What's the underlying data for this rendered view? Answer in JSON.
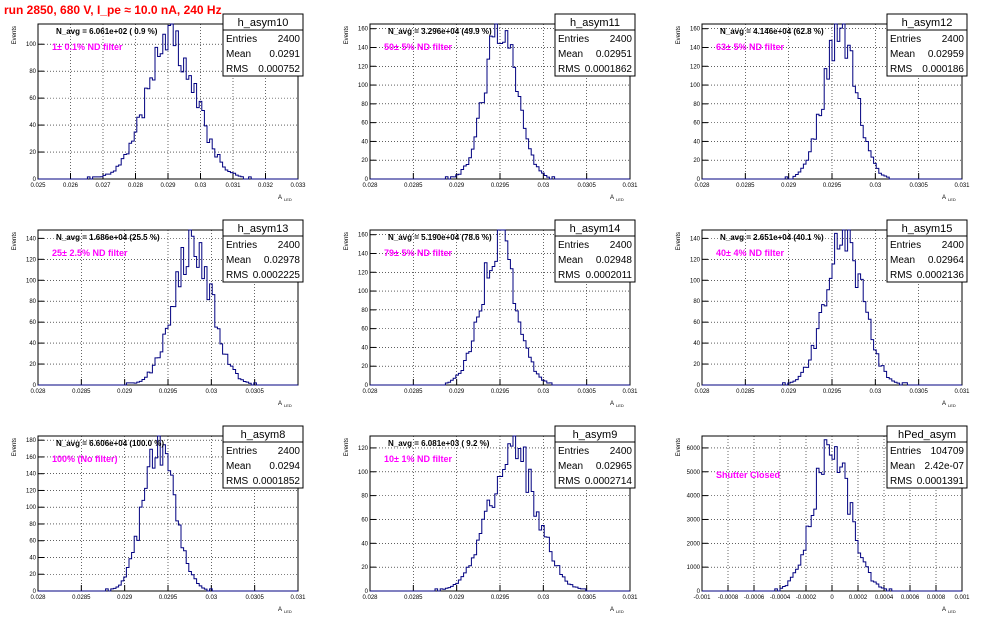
{
  "header": {
    "title": "run 2850,   680 V, I_pe ≈ 10.0 nA, 240 Hz"
  },
  "colors": {
    "title": "#ff0000",
    "annotation": "#ff00ff",
    "histogram": "#000080",
    "grid": "#000000"
  },
  "axis_labels": {
    "y": "Events",
    "x": "A",
    "x_sub": "LED"
  },
  "stats_labels": {
    "entries": "Entries",
    "mean": "Mean",
    "rms": "RMS"
  },
  "chart_data": [
    {
      "type": "histogram",
      "name": "h_asym10",
      "navg": "N_avg = 6.061e+02 ( 0.9 %)",
      "annotation": "1± 0.1% ND filter",
      "entries": "2400",
      "mean": "0.0291",
      "rms": "0.000752",
      "xlim": [
        0.025,
        0.033
      ],
      "xticks": [
        0.025,
        0.026,
        0.027,
        0.028,
        0.029,
        0.03,
        0.031,
        0.032,
        0.033
      ],
      "xtick_labels": [
        "0.025",
        "0.026",
        "0.027",
        "0.028",
        "0.029",
        "0.03",
        "0.031",
        "0.032",
        "0.033"
      ],
      "ylim": [
        0,
        115
      ],
      "yticks": [
        0,
        20,
        40,
        60,
        80,
        100
      ],
      "ytick_labels": [
        "0",
        "20",
        "40",
        "60",
        "80",
        "100"
      ],
      "shape": {
        "mean": 0.0291,
        "rms": 0.000752,
        "peak": 103,
        "bins": 100,
        "seed": 10
      }
    },
    {
      "type": "histogram",
      "name": "h_asym11",
      "navg": "N_avg = 3.296e+04 (49.9 %)",
      "annotation": "50± 5% ND filter",
      "entries": "2400",
      "mean": "0.02951",
      "rms": "0.0001862",
      "xlim": [
        0.028,
        0.031
      ],
      "xticks": [
        0.028,
        0.0285,
        0.029,
        0.0295,
        0.03,
        0.0305,
        0.031
      ],
      "xtick_labels": [
        "0.028",
        "0.0285",
        "0.029",
        "0.0295",
        "0.03",
        "0.0305",
        "0.031"
      ],
      "ylim": [
        0,
        165
      ],
      "yticks": [
        0,
        20,
        40,
        60,
        80,
        100,
        120,
        140,
        160
      ],
      "ytick_labels": [
        "0",
        "20",
        "40",
        "60",
        "80",
        "100",
        "120",
        "140",
        "160"
      ],
      "shape": {
        "mean": 0.02951,
        "rms": 0.0001862,
        "peak": 158,
        "bins": 100,
        "seed": 11
      }
    },
    {
      "type": "histogram",
      "name": "h_asym12",
      "navg": "N_avg = 4.146e+04 (62.8 %)",
      "annotation": "63± 5% ND filter",
      "entries": "2400",
      "mean": "0.02959",
      "rms": "0.000186",
      "xlim": [
        0.028,
        0.031
      ],
      "xticks": [
        0.028,
        0.0285,
        0.029,
        0.0295,
        0.03,
        0.0305,
        0.031
      ],
      "xtick_labels": [
        "0.028",
        "0.0285",
        "0.029",
        "0.0295",
        "0.03",
        "0.0305",
        "0.031"
      ],
      "ylim": [
        0,
        165
      ],
      "yticks": [
        0,
        20,
        40,
        60,
        80,
        100,
        120,
        140,
        160
      ],
      "ytick_labels": [
        "0",
        "20",
        "40",
        "60",
        "80",
        "100",
        "120",
        "140",
        "160"
      ],
      "shape": {
        "mean": 0.02959,
        "rms": 0.000186,
        "peak": 155,
        "bins": 100,
        "seed": 12
      }
    },
    {
      "type": "histogram",
      "name": "h_asym13",
      "navg": "N_avg = 1.686e+04 (25.5 %)",
      "annotation": "25± 2.5% ND filter",
      "entries": "2400",
      "mean": "0.02978",
      "rms": "0.0002225",
      "xlim": [
        0.028,
        0.031
      ],
      "xticks": [
        0.028,
        0.0285,
        0.029,
        0.0295,
        0.03,
        0.0305
      ],
      "xtick_labels": [
        "0.028",
        "0.0285",
        "0.029",
        "0.0295",
        "0.03",
        "0.0305"
      ],
      "ylim": [
        0,
        148
      ],
      "yticks": [
        0,
        20,
        40,
        60,
        80,
        100,
        120,
        140
      ],
      "ytick_labels": [
        "0",
        "20",
        "40",
        "60",
        "80",
        "100",
        "120",
        "140"
      ],
      "shape": {
        "mean": 0.02978,
        "rms": 0.0002225,
        "peak": 137,
        "bins": 100,
        "seed": 13
      }
    },
    {
      "type": "histogram",
      "name": "h_asym14",
      "navg": "N_avg = 5.190e+04 (78.6 %)",
      "annotation": "79± 5% ND filter",
      "entries": "2400",
      "mean": "0.02948",
      "rms": "0.0002011",
      "xlim": [
        0.028,
        0.031
      ],
      "xticks": [
        0.028,
        0.0285,
        0.029,
        0.0295,
        0.03,
        0.0305,
        0.031
      ],
      "xtick_labels": [
        "0.028",
        "0.0285",
        "0.029",
        "0.0295",
        "0.03",
        "0.0305",
        "0.031"
      ],
      "ylim": [
        0,
        165
      ],
      "yticks": [
        0,
        20,
        40,
        60,
        80,
        100,
        120,
        140,
        160
      ],
      "ytick_labels": [
        "0",
        "20",
        "40",
        "60",
        "80",
        "100",
        "120",
        "140",
        "160"
      ],
      "shape": {
        "mean": 0.02948,
        "rms": 0.0002011,
        "peak": 150,
        "bins": 100,
        "seed": 14
      }
    },
    {
      "type": "histogram",
      "name": "h_asym15",
      "navg": "N_avg = 2.651e+04 (40.1 %)",
      "annotation": "40± 4% ND filter",
      "entries": "2400",
      "mean": "0.02964",
      "rms": "0.0002136",
      "xlim": [
        0.028,
        0.031
      ],
      "xticks": [
        0.028,
        0.0285,
        0.029,
        0.0295,
        0.03,
        0.0305,
        0.031
      ],
      "xtick_labels": [
        "0.028",
        "0.0285",
        "0.029",
        "0.0295",
        "0.03",
        "0.0305",
        "0.031"
      ],
      "ylim": [
        0,
        148
      ],
      "yticks": [
        0,
        20,
        40,
        60,
        80,
        100,
        120,
        140
      ],
      "ytick_labels": [
        "0",
        "20",
        "40",
        "60",
        "80",
        "100",
        "120",
        "140"
      ],
      "shape": {
        "mean": 0.02964,
        "rms": 0.0002136,
        "peak": 140,
        "bins": 100,
        "seed": 15
      }
    },
    {
      "type": "histogram",
      "name": "h_asym8",
      "navg": "N_avg = 6.606e+04 (100.0 %)",
      "annotation": "100% (No filter)",
      "entries": "2400",
      "mean": "0.0294",
      "rms": "0.0001852",
      "xlim": [
        0.028,
        0.031
      ],
      "xticks": [
        0.028,
        0.0285,
        0.029,
        0.0295,
        0.03,
        0.0305,
        0.031
      ],
      "xtick_labels": [
        "0.028",
        "0.0285",
        "0.029",
        "0.0295",
        "0.03",
        "0.0305",
        "0.031"
      ],
      "ylim": [
        0,
        185
      ],
      "yticks": [
        0,
        20,
        40,
        60,
        80,
        100,
        120,
        140,
        160,
        180
      ],
      "ytick_labels": [
        "0",
        "20",
        "40",
        "60",
        "80",
        "100",
        "120",
        "140",
        "160",
        "180"
      ],
      "shape": {
        "mean": 0.0294,
        "rms": 0.0001852,
        "peak": 172,
        "bins": 100,
        "seed": 8
      }
    },
    {
      "type": "histogram",
      "name": "h_asym9",
      "navg": "N_avg = 6.081e+03 ( 9.2 %)",
      "annotation": "10± 1% ND filter",
      "entries": "2400",
      "mean": "0.02965",
      "rms": "0.0002714",
      "xlim": [
        0.028,
        0.031
      ],
      "xticks": [
        0.028,
        0.0285,
        0.029,
        0.0295,
        0.03,
        0.0305,
        0.031
      ],
      "xtick_labels": [
        "0.028",
        "0.0285",
        "0.029",
        "0.0295",
        "0.03",
        "0.0305",
        "0.031"
      ],
      "ylim": [
        0,
        130
      ],
      "yticks": [
        0,
        20,
        40,
        60,
        80,
        100,
        120
      ],
      "ytick_labels": [
        "0",
        "20",
        "40",
        "60",
        "80",
        "100",
        "120"
      ],
      "shape": {
        "mean": 0.02965,
        "rms": 0.0002714,
        "peak": 118,
        "bins": 100,
        "seed": 9
      }
    },
    {
      "type": "histogram",
      "name": "hPed_asym",
      "navg": "",
      "annotation": "Shutter Closed",
      "entries": "104709",
      "mean": "2.42e-07",
      "rms": "0.0001391",
      "xlim": [
        -0.001,
        0.001
      ],
      "xticks": [
        -0.001,
        -0.0008,
        -0.0006,
        -0.0004,
        -0.0002,
        0,
        0.0002,
        0.0004,
        0.0006,
        0.0008,
        0.001
      ],
      "xtick_labels": [
        "-0.001",
        "-0.0008",
        "-0.0006",
        "-0.0004",
        "-0.0002",
        "0",
        "0.0002",
        "0.0004",
        "0.0006",
        "0.0008",
        "0.001"
      ],
      "ylim": [
        0,
        6500
      ],
      "yticks": [
        0,
        1000,
        2000,
        3000,
        4000,
        5000,
        6000
      ],
      "ytick_labels": [
        "0",
        "1000",
        "2000",
        "3000",
        "4000",
        "5000",
        "6000"
      ],
      "shape": {
        "mean": 0.0,
        "rms": 0.0001391,
        "peak": 6050,
        "bins": 100,
        "seed": 0
      }
    }
  ]
}
